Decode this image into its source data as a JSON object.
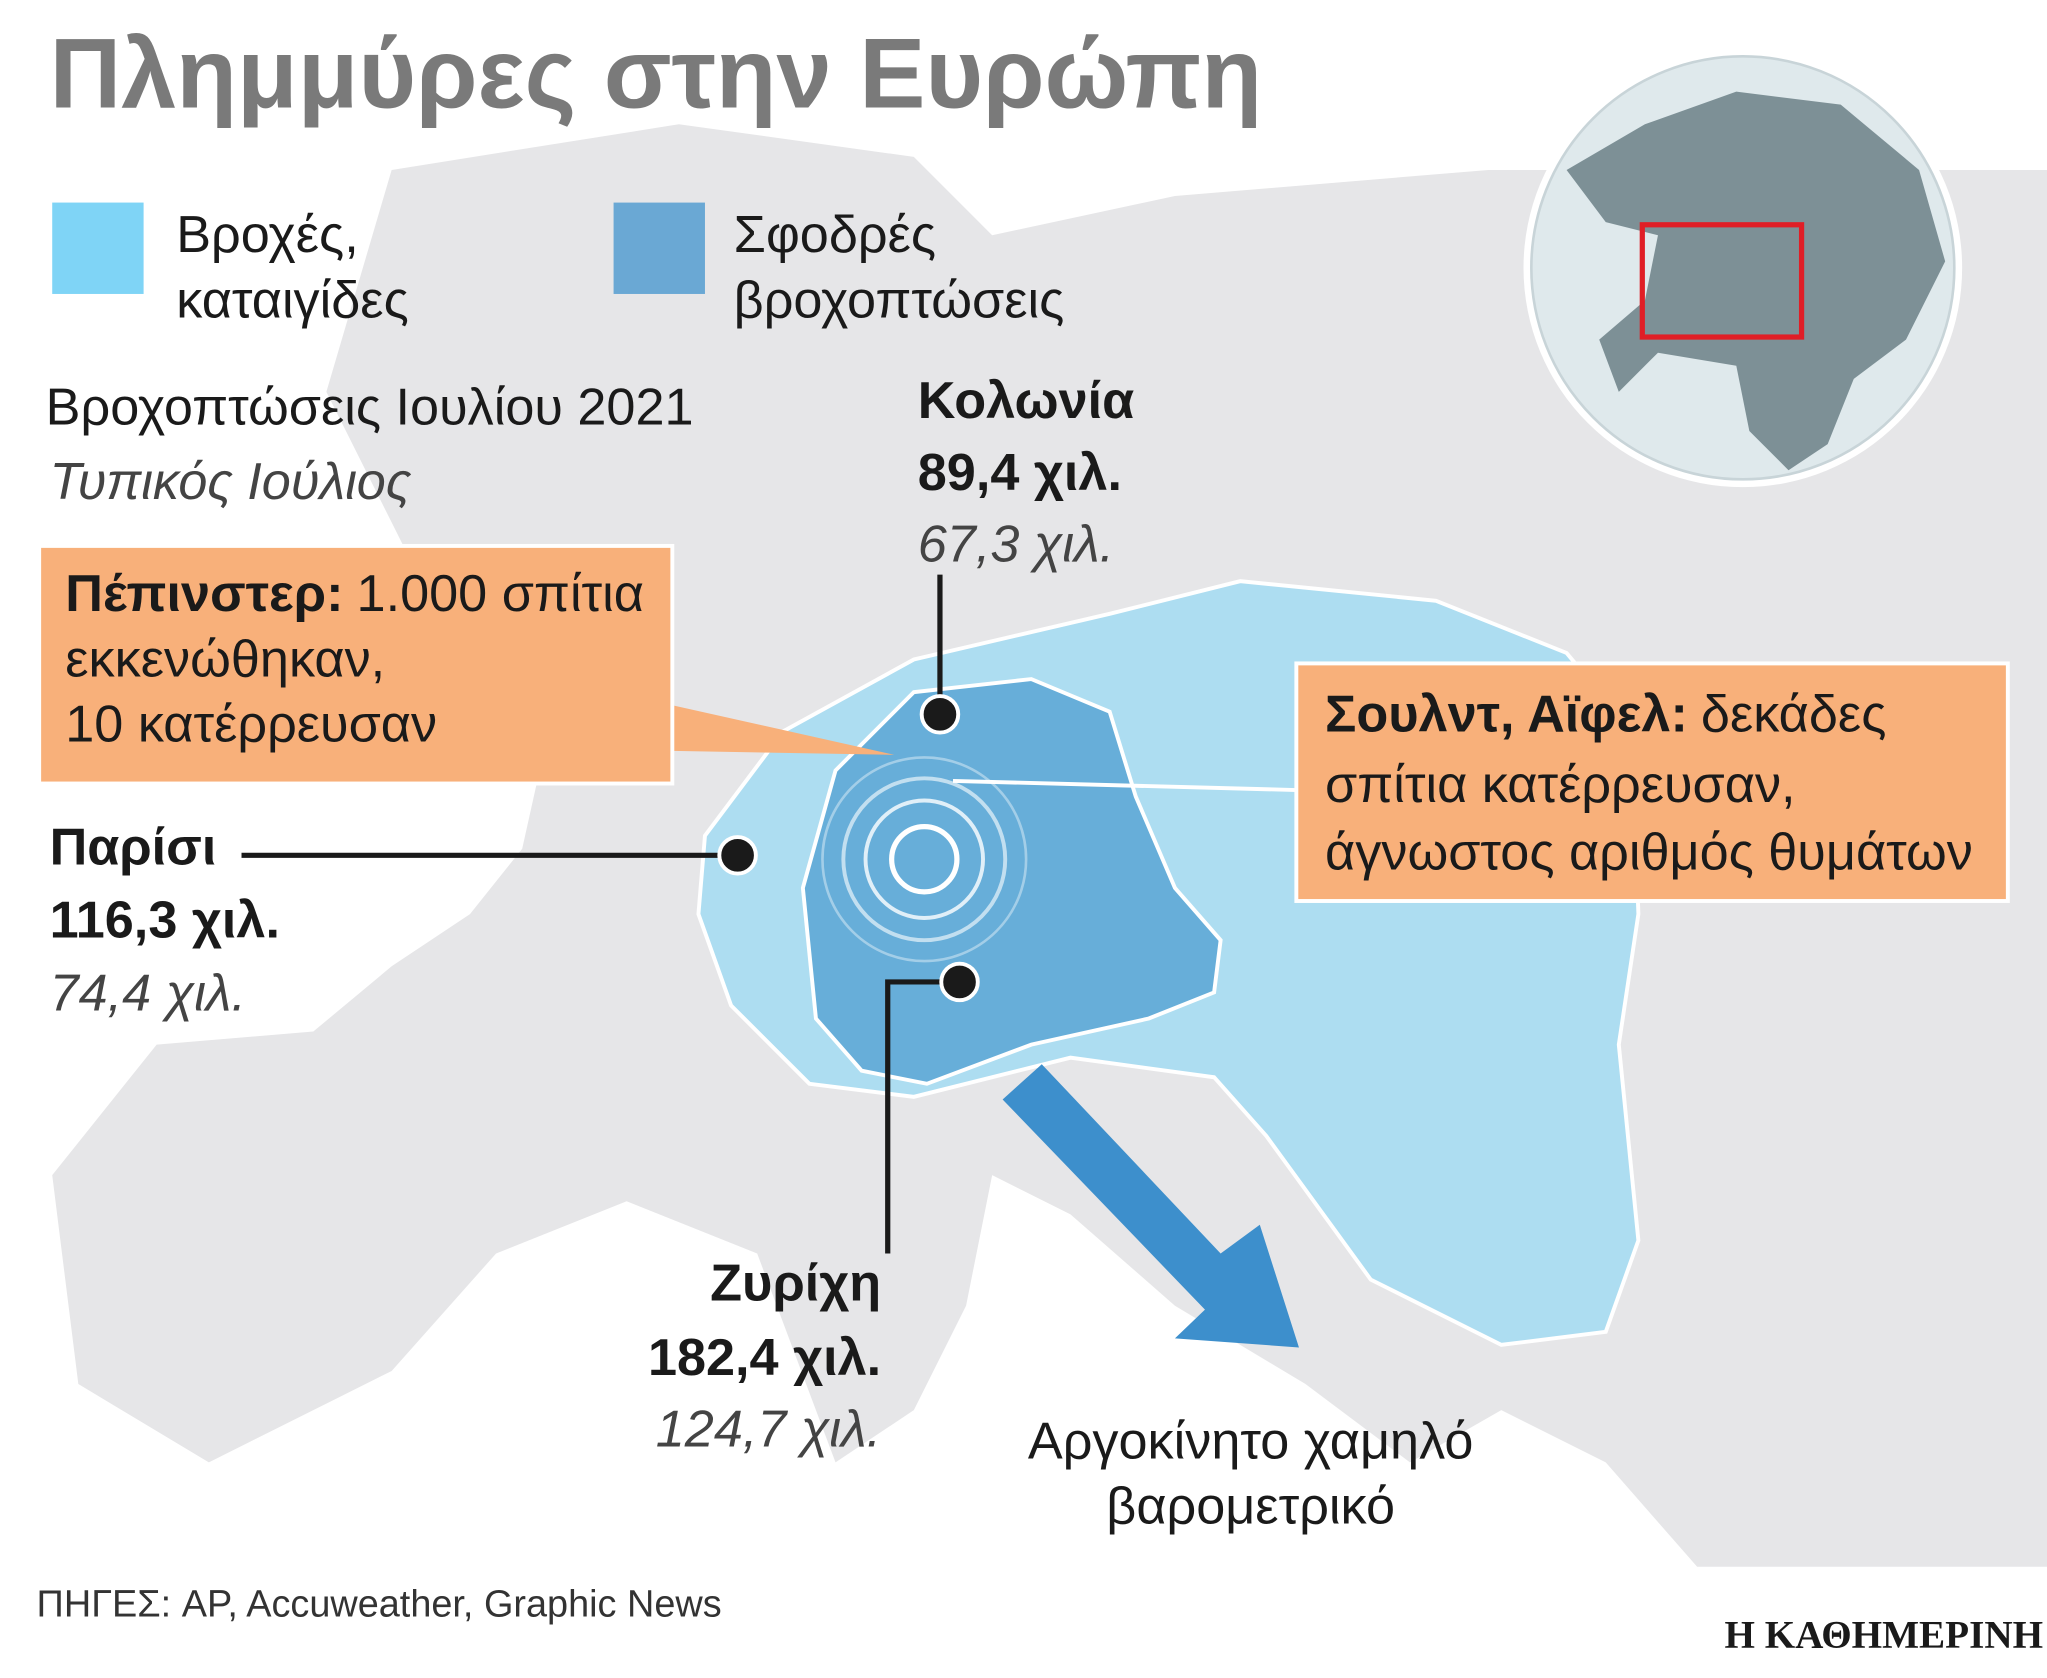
{
  "header": {
    "title": "Πλημμύρες στην Ευρώπη"
  },
  "legend": [
    {
      "label_lines": [
        "Βροχές,",
        "καταιγίδες"
      ]
    },
    {
      "label_lines": [
        "Σφοδρές",
        "βροχοπτώσεις"
      ]
    }
  ],
  "subtitle": {
    "actual": "Βροχοπτώσεις Ιουλίου 2021",
    "typical": "Τυπικός Ιούλιος"
  },
  "cities": [
    {
      "name": "Κολωνία",
      "actual": "89,4 χιλ.",
      "typical": "67,3 χιλ."
    },
    {
      "name": "Παρίσι",
      "actual": "116,3 χιλ.",
      "typical": "74,4 χιλ."
    },
    {
      "name": "Ζυρίχη",
      "actual": "182,4 χιλ.",
      "typical": "124,7 χιλ."
    }
  ],
  "callouts": [
    {
      "place": "Πέπινστερ:",
      "lines": [
        "1.000 σπίτια",
        "εκκενώθηκαν,",
        "10 κατέρρευσαν"
      ]
    },
    {
      "place": "Σουλντ, Αϊφελ:",
      "lines": [
        "δεκάδες",
        "σπίτια κατέρρευσαν,",
        "άγνωστος αριθμός θυμάτων"
      ]
    }
  ],
  "arrow_label": [
    "Αργοκίνητο χαμηλό",
    "βαρομετρικό"
  ],
  "source": "ΠΗΓΕΣ: AP, Accuweather, Graphic News",
  "brand": "Η ΚΑΘΗΜΕΡΙΝΗ"
}
